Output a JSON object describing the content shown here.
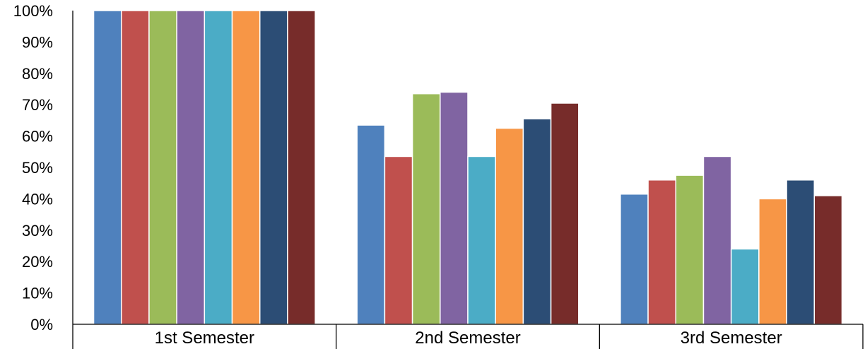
{
  "chart_data": {
    "type": "bar",
    "categories": [
      "1st Semester",
      "2nd Semester",
      "3rd Semester"
    ],
    "series": [
      {
        "color": "#4F81BD",
        "values": [
          100,
          63.5,
          41.5
        ]
      },
      {
        "color": "#C0504D",
        "values": [
          100,
          53.5,
          46
        ]
      },
      {
        "color": "#9BBB59",
        "values": [
          100,
          73.5,
          47.5
        ]
      },
      {
        "color": "#8064A2",
        "values": [
          100,
          74,
          53.5
        ]
      },
      {
        "color": "#4BACC6",
        "values": [
          100,
          53.5,
          24
        ]
      },
      {
        "color": "#F79646",
        "values": [
          100,
          62.5,
          40
        ]
      },
      {
        "color": "#2C4D75",
        "values": [
          100,
          65.5,
          46
        ]
      },
      {
        "color": "#772C2A",
        "values": [
          100,
          70.5,
          41
        ]
      }
    ],
    "ylim": [
      0,
      100
    ],
    "yticks": [
      "0%",
      "10%",
      "20%",
      "30%",
      "40%",
      "50%",
      "60%",
      "70%",
      "80%",
      "90%",
      "100%"
    ],
    "grid": false,
    "legend": "none"
  }
}
